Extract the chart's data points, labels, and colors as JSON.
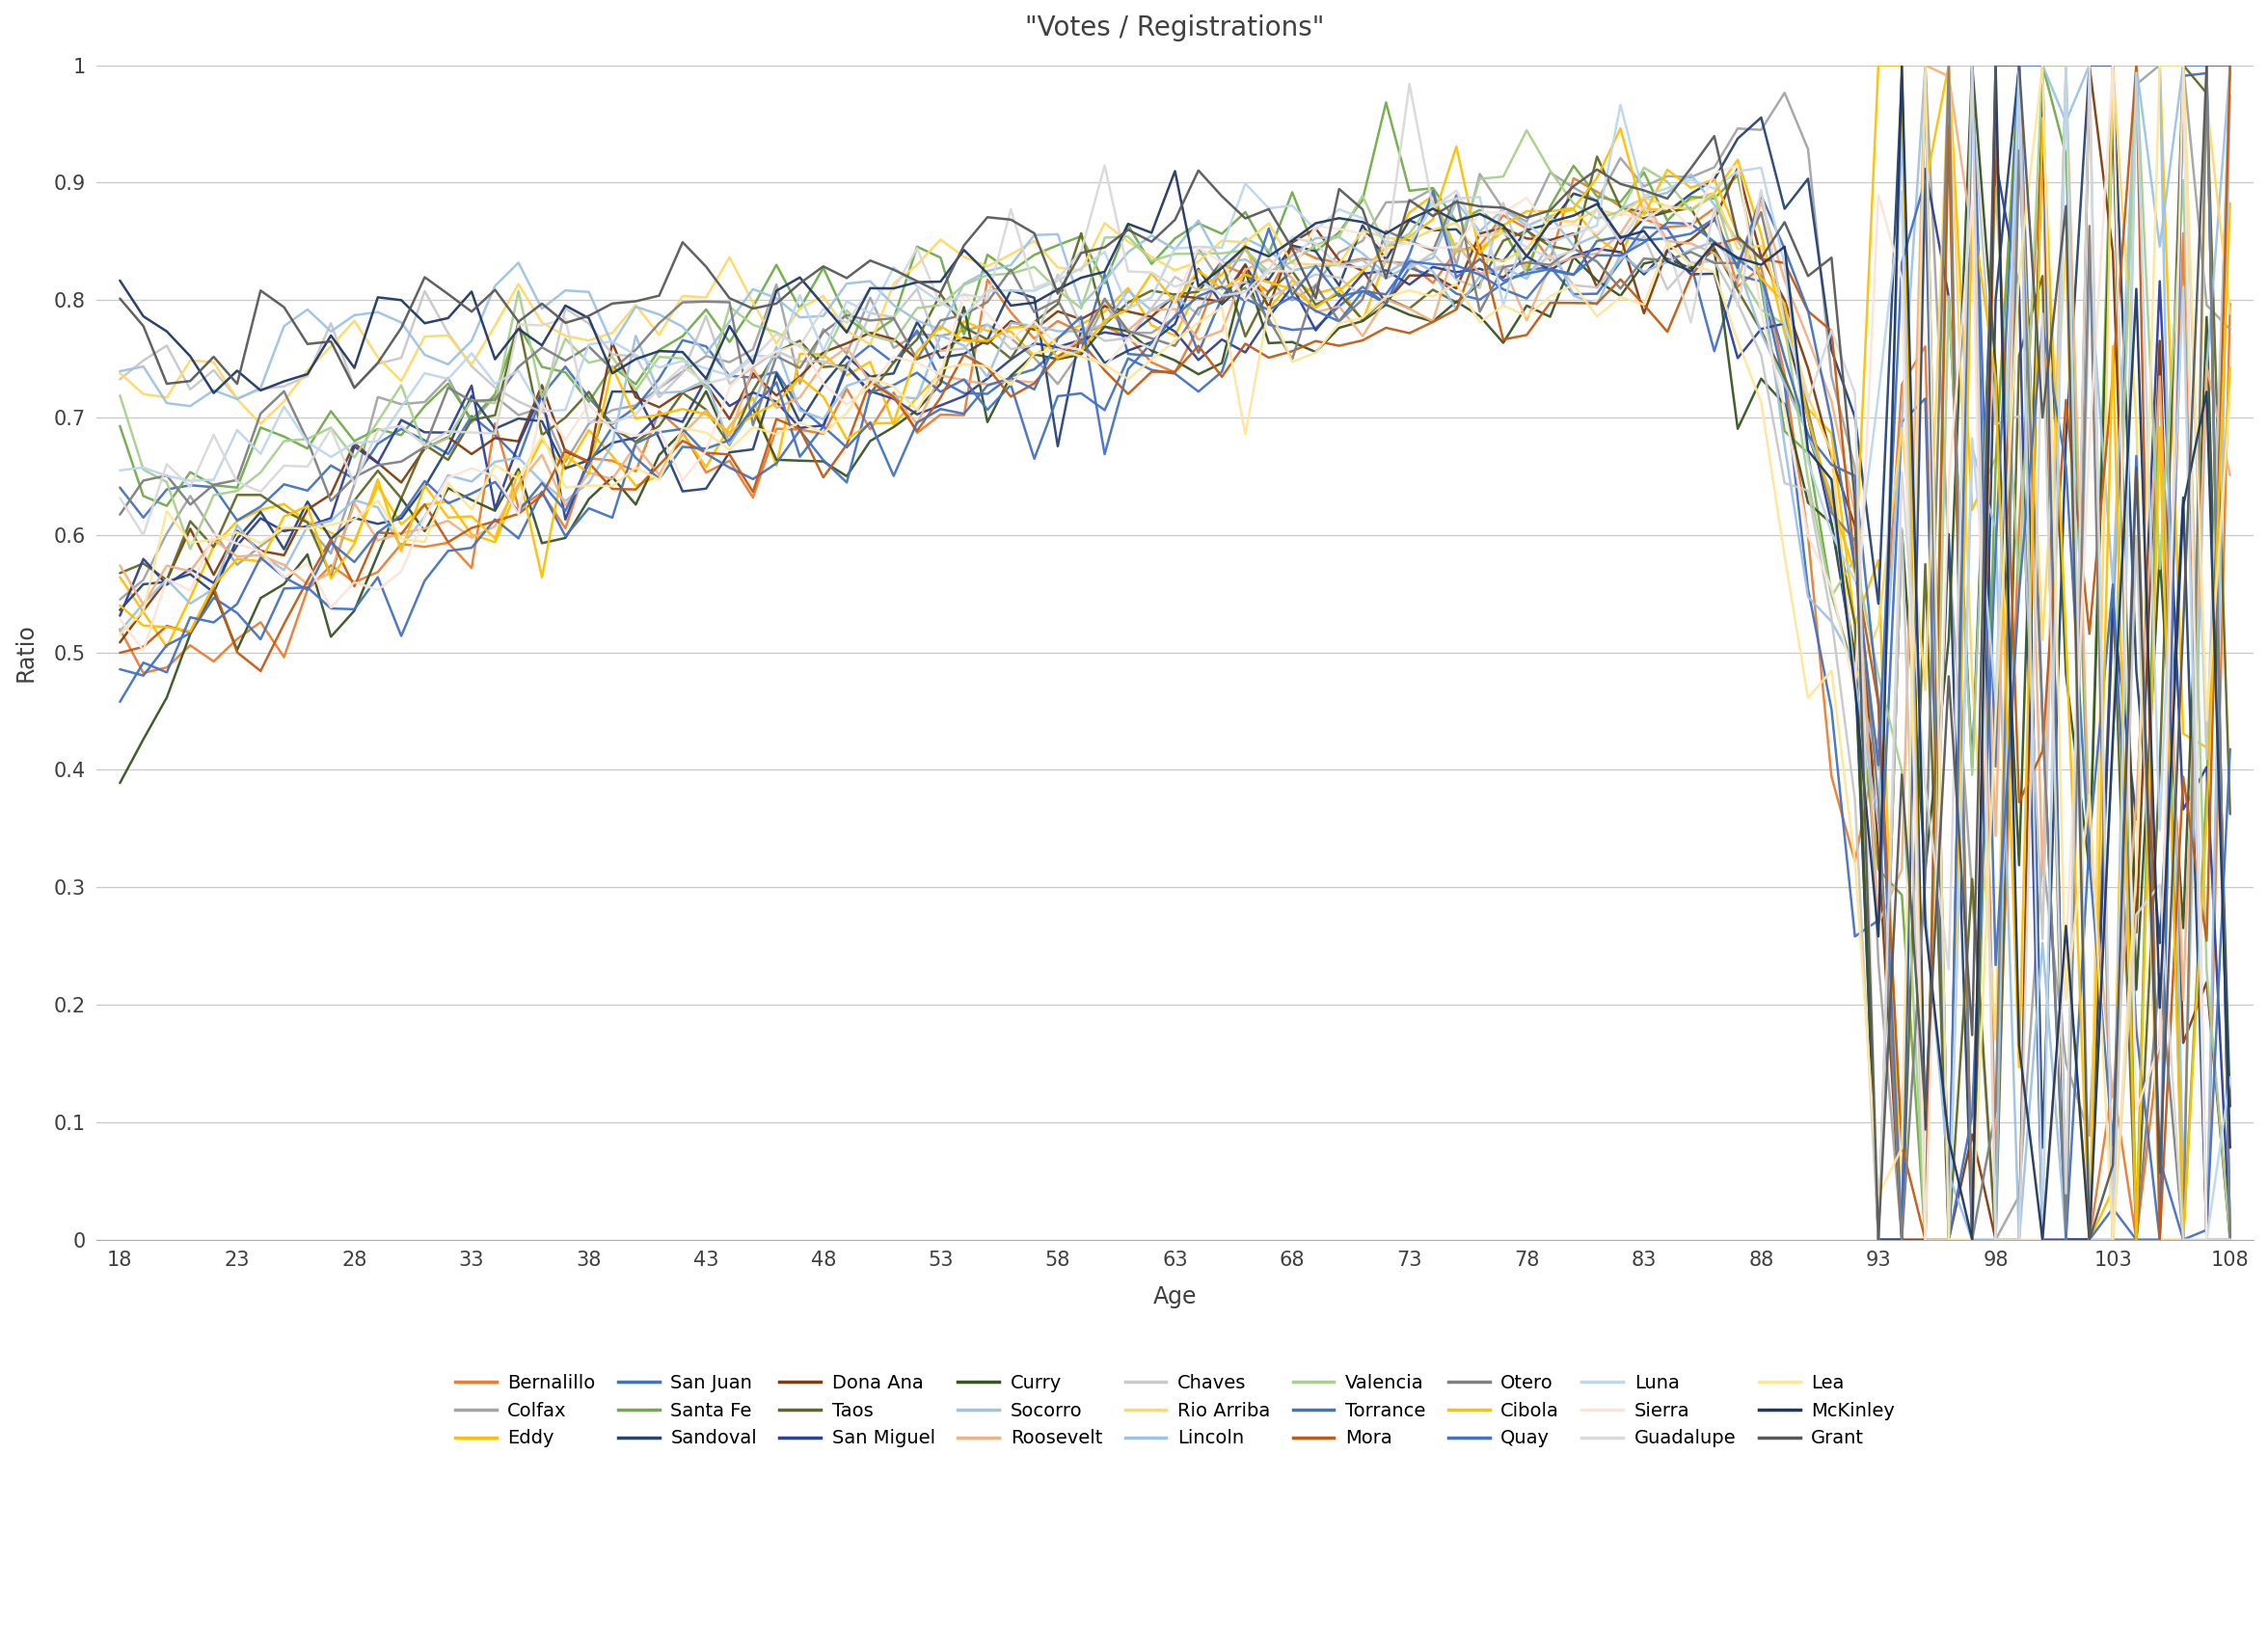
{
  "title": "\"Votes / Registrations\"",
  "xlabel": "Age",
  "ylabel": "Ratio",
  "xlim": [
    17,
    109
  ],
  "ylim": [
    0,
    1.0
  ],
  "xticks": [
    18,
    23,
    28,
    33,
    38,
    43,
    48,
    53,
    58,
    63,
    68,
    73,
    78,
    83,
    88,
    93,
    98,
    103,
    108
  ],
  "yticks": [
    0,
    0.1,
    0.2,
    0.3,
    0.4,
    0.5,
    0.6,
    0.7,
    0.8,
    0.9,
    1
  ],
  "counties": [
    "Bernalillo",
    "Colfax",
    "Eddy",
    "San Juan",
    "Santa Fe",
    "Sandoval",
    "Dona Ana",
    "Taos",
    "San Miguel",
    "Curry",
    "Socorro",
    "Roosevelt",
    "Chaves",
    "Rio Arriba",
    "Lincoln",
    "Valencia",
    "Torrance",
    "Mora",
    "Otero",
    "Cibola",
    "Quay",
    "Luna",
    "Sierra",
    "Guadalupe",
    "Lea",
    "McKinley",
    "Grant"
  ],
  "county_colors": [
    "#ED7D31",
    "#A5A5A5",
    "#FFC000",
    "#4472C4",
    "#70AD47",
    "#264478",
    "#843C0C",
    "#636923",
    "#2E4099",
    "#375623",
    "#9DC3E6",
    "#F4B183",
    "#C9C9C9",
    "#FFD966",
    "#9DC3E6",
    "#A9D18E",
    "#4472C4",
    "#C55A11",
    "#808080",
    "#FFC000",
    "#4472C4",
    "#BDD7EE",
    "#FCE4D6",
    "#D9D9D9",
    "#FFE699",
    "#1F3864",
    "#595959"
  ],
  "legend_rows": [
    [
      "Bernalillo",
      "Colfax",
      "Eddy",
      "San Juan",
      "Santa Fe",
      "Sandoval",
      "Dona Ana",
      "Taos",
      "San Miguel"
    ],
    [
      "Curry",
      "Socorro",
      "Roosevelt",
      "Chaves",
      "Rio Arriba",
      "Lincoln",
      "Valencia",
      "Torrance",
      "Mora"
    ],
    [
      "Otero",
      "Cibola",
      "Quay",
      "Luna",
      "Sierra",
      "Guadalupe",
      "Lea",
      "McKinley",
      "Grant"
    ]
  ],
  "line_width": 1.8
}
